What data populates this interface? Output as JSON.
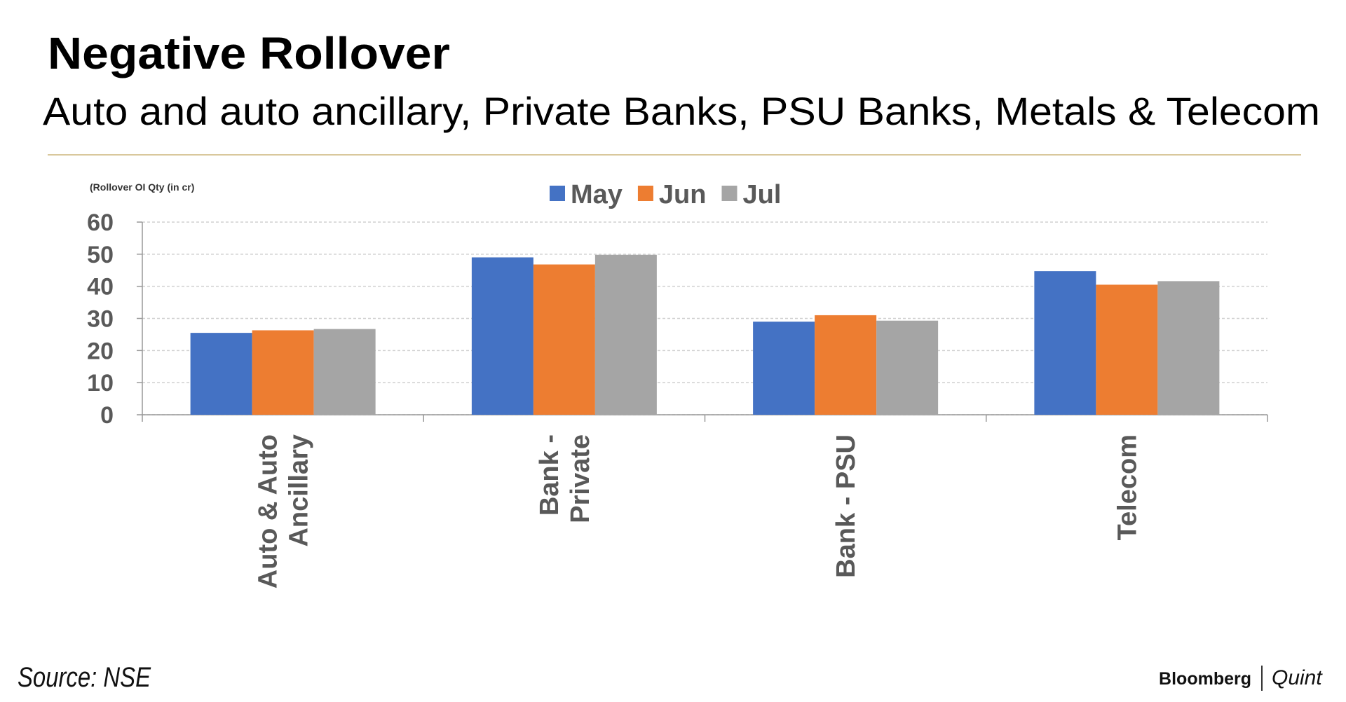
{
  "chart_data": {
    "type": "bar",
    "title": "Negative Rollover",
    "subtitle": "Auto and auto ancillary, Private Banks, PSU Banks, Metals & Telecom",
    "y_label": "(Rollover OI Qty (in cr)",
    "categories": [
      [
        "Auto & Auto",
        "Ancillary"
      ],
      [
        "Bank -",
        "Private"
      ],
      [
        "Bank - PSU"
      ],
      [
        "Telecom"
      ]
    ],
    "series": [
      {
        "name": "May",
        "color": "#4472c4",
        "values": [
          25.5,
          49,
          29,
          44.7
        ]
      },
      {
        "name": "Jun",
        "color": "#ed7d31",
        "values": [
          26.3,
          46.8,
          31,
          40.5
        ]
      },
      {
        "name": "Jul",
        "color": "#a5a5a5",
        "values": [
          26.7,
          49.8,
          29.3,
          41.6
        ]
      }
    ],
    "ylim": [
      0,
      60
    ],
    "yticks": [
      0,
      10,
      20,
      30,
      40,
      50,
      60
    ],
    "grid": true,
    "legend": "top",
    "source": "Source: NSE",
    "brand": "Bloomberg",
    "brand_suffix": "Quint"
  }
}
